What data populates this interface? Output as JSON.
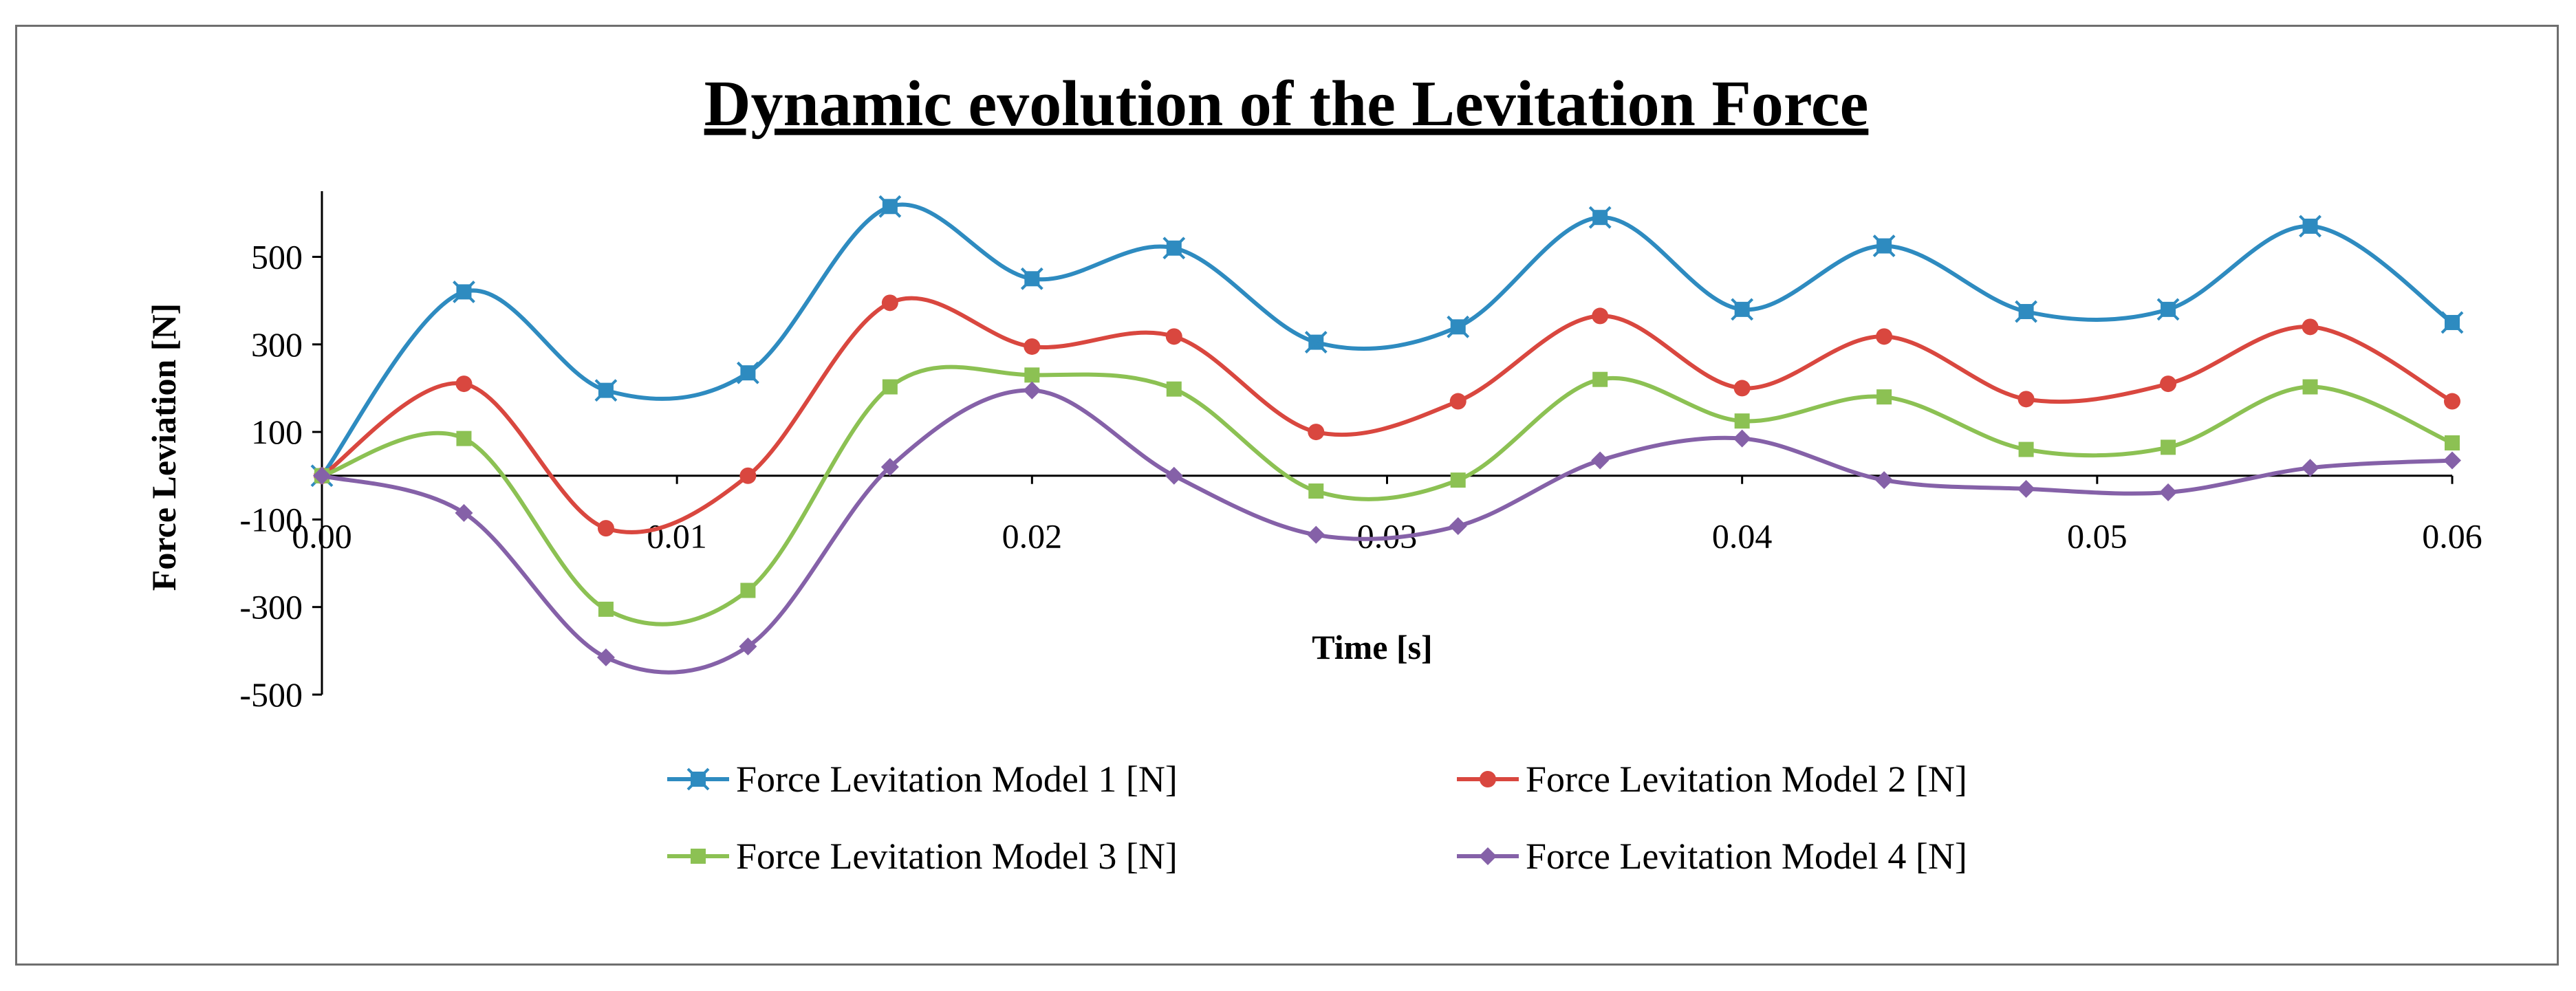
{
  "chart_data": {
    "type": "line",
    "title": "Dynamic evolution of the Levitation Force",
    "xlabel": "Time [s]",
    "ylabel": "Force Leviation [N]",
    "xlim": [
      0,
      0.06
    ],
    "ylim": [
      -500,
      650
    ],
    "x_ticks": [
      0,
      0.01,
      0.02,
      0.03,
      0.04,
      0.05,
      0.06
    ],
    "x_tick_labels": [
      "0.00",
      "0.01",
      "0.02",
      "0.03",
      "0.04",
      "0.05",
      "0.06"
    ],
    "y_ticks": [
      -500,
      -300,
      -100,
      100,
      300,
      500
    ],
    "y_tick_labels": [
      "-500",
      "-300",
      "-100",
      "100",
      "300",
      "500"
    ],
    "grid": false,
    "legend_position": "bottom",
    "x": [
      0,
      0.004,
      0.008,
      0.012,
      0.016,
      0.02,
      0.024,
      0.028,
      0.032,
      0.036,
      0.04,
      0.044,
      0.048,
      0.052,
      0.056,
      0.06
    ],
    "series": [
      {
        "name": "Force Levitation Model 1 [N]",
        "color": "#2E8BC0",
        "marker": "square-star",
        "values": [
          0,
          420,
          195,
          235,
          615,
          450,
          520,
          305,
          340,
          590,
          380,
          525,
          375,
          380,
          570,
          350
        ]
      },
      {
        "name": "Force Levitation Model 2 [N]",
        "color": "#D9473F",
        "marker": "circle",
        "values": [
          0,
          210,
          -120,
          0,
          395,
          295,
          318,
          100,
          170,
          365,
          200,
          318,
          175,
          210,
          340,
          170
        ]
      },
      {
        "name": "Force Levitation Model 3 [N]",
        "color": "#8CC153",
        "marker": "square",
        "values": [
          0,
          85,
          -305,
          -262,
          203,
          230,
          198,
          -35,
          -10,
          220,
          125,
          180,
          60,
          65,
          203,
          75
        ]
      },
      {
        "name": "Force Levitation Model 4 [N]",
        "color": "#8561A8",
        "marker": "diamond",
        "values": [
          0,
          -85,
          -415,
          -390,
          20,
          195,
          0,
          -135,
          -115,
          35,
          85,
          -10,
          -30,
          -38,
          18,
          35
        ]
      }
    ]
  }
}
